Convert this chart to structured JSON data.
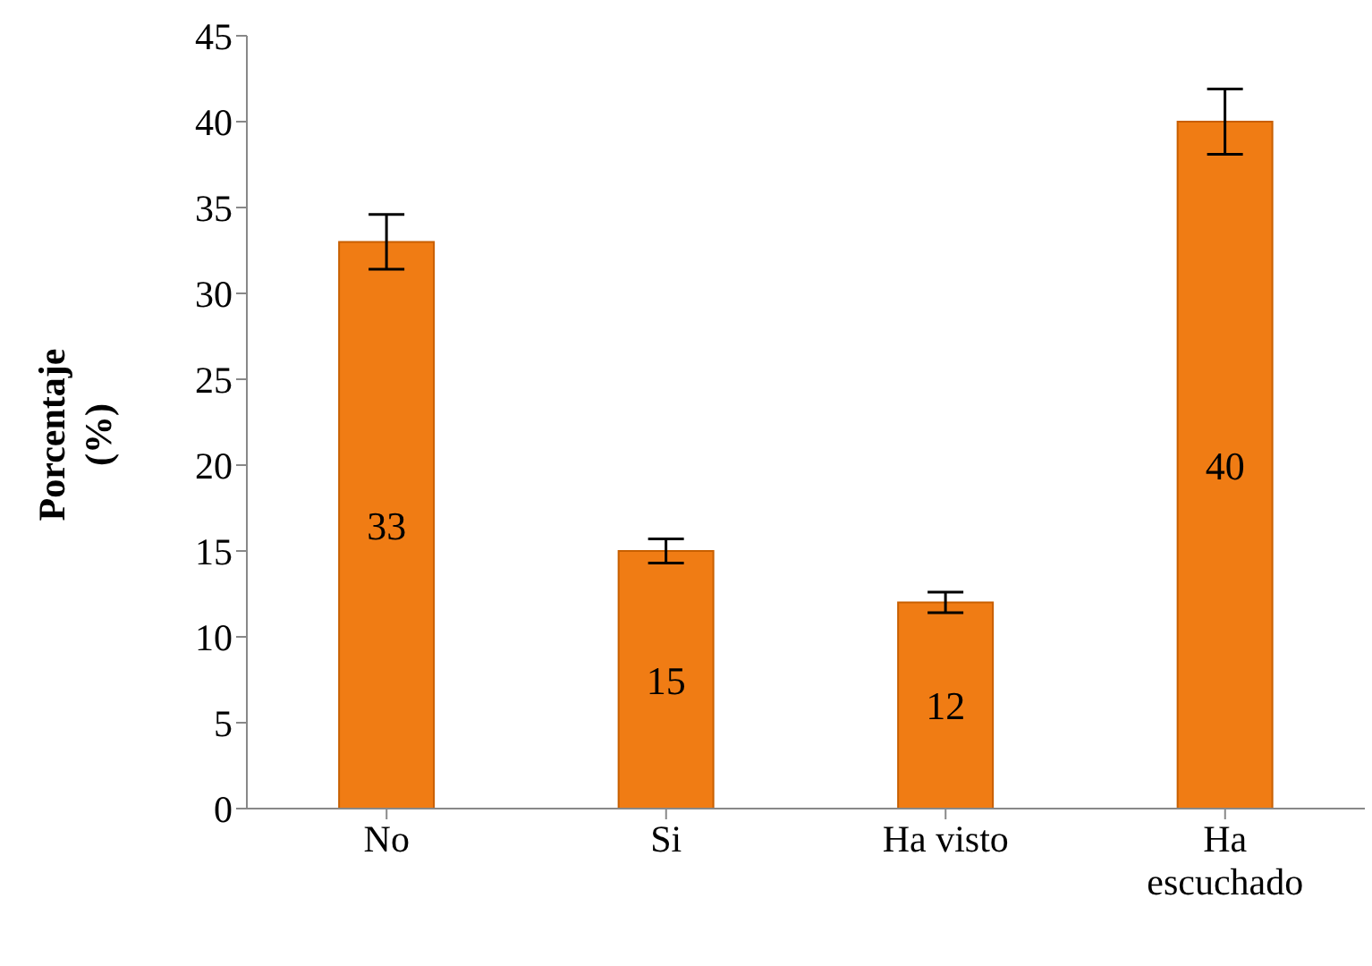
{
  "chart_data": {
    "type": "bar",
    "ylabel": "Porcentaje (%)",
    "categories": [
      "No",
      "Si",
      "Ha visto",
      "Ha escuchado"
    ],
    "values": [
      33,
      15,
      12,
      40
    ],
    "errors": [
      1.6,
      0.7,
      0.6,
      1.9
    ],
    "color": "#f07c14",
    "ylim": [
      0,
      45
    ],
    "yticks": [
      0,
      5,
      10,
      15,
      20,
      25,
      30,
      35,
      40,
      45
    ],
    "grid": false,
    "data_labels": true
  }
}
